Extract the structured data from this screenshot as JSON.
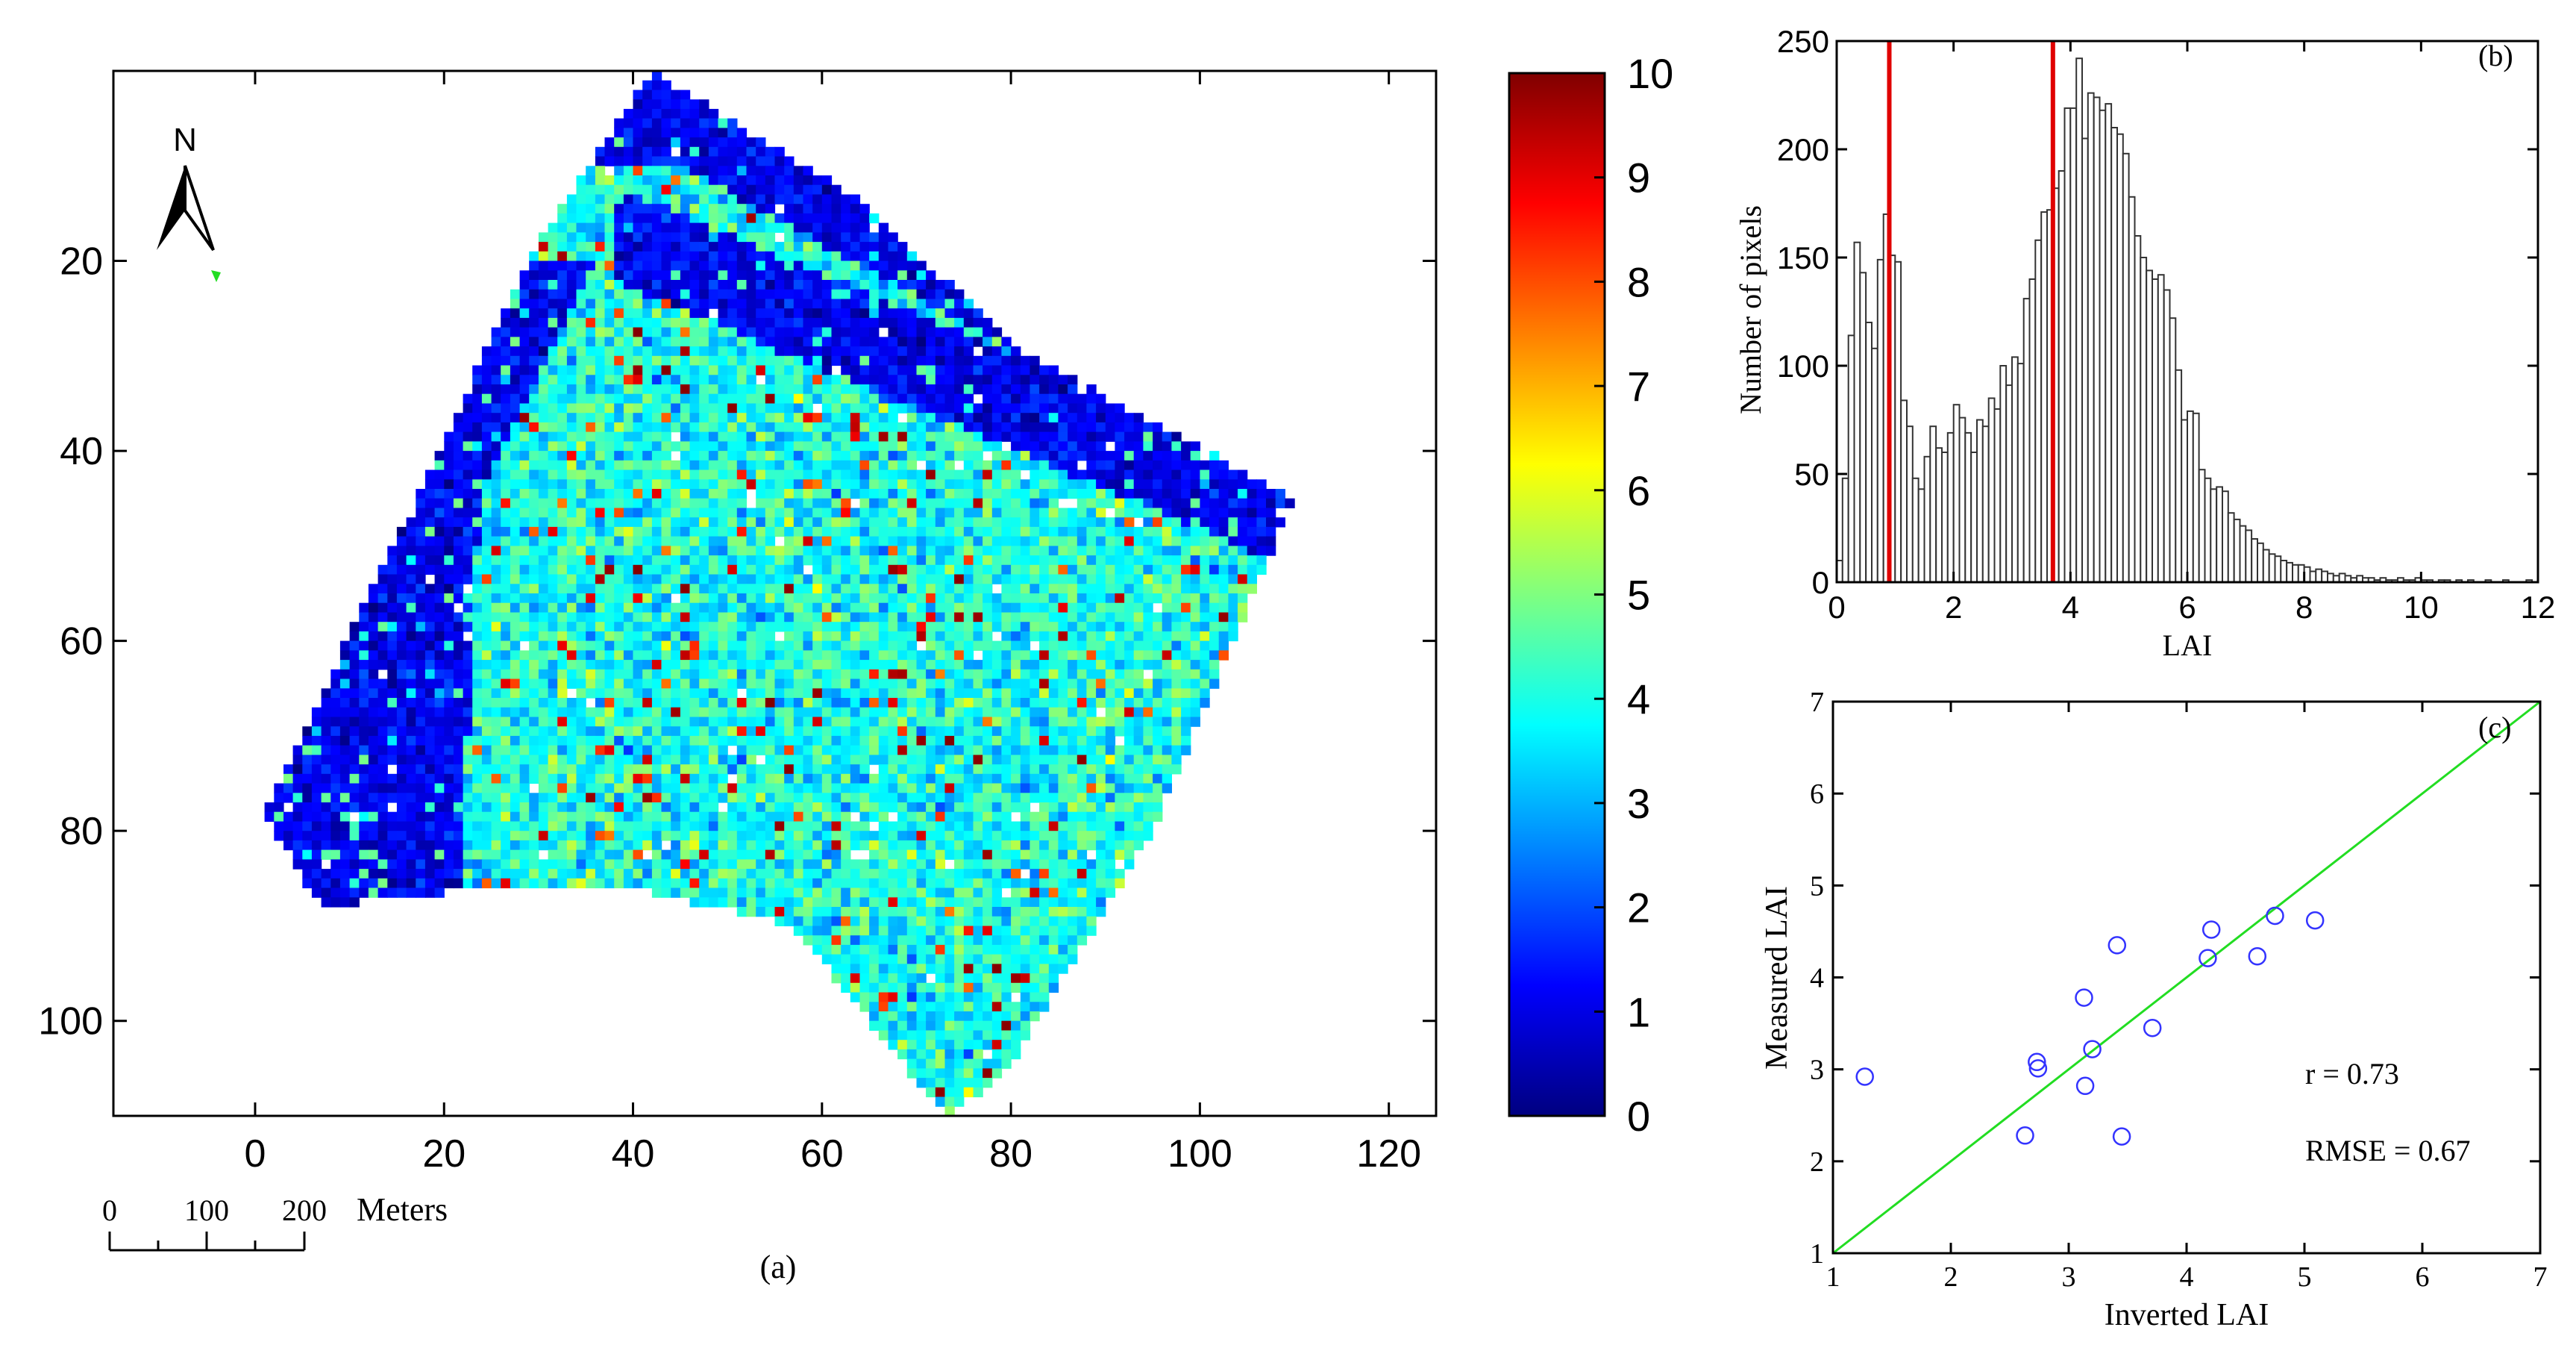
{
  "colors": {
    "axis": "#000000",
    "red_line": "#e00000",
    "fit_line": "#22dd22",
    "marker": "#3333ff",
    "background": "#ffffff"
  },
  "panel_a": {
    "caption": "(a)",
    "north_label": "N",
    "scale_bar": {
      "ticks": [
        "0",
        "100",
        "200"
      ],
      "unit": "Meters"
    },
    "colorbar_ticks": [
      "0",
      "1",
      "2",
      "3",
      "4",
      "5",
      "6",
      "7",
      "8",
      "9",
      "10"
    ]
  },
  "panel_b": {
    "tag": "(b)",
    "ylabel": "Number of pixels",
    "xlabel": "LAI"
  },
  "panel_c": {
    "tag": "(c)",
    "ylabel": "Measured LAI",
    "xlabel": "Inverted LAI",
    "r_text": "r = 0.73",
    "rmse_text": "RMSE = 0.67"
  },
  "chart_data": [
    {
      "type": "heatmap",
      "panel": "a",
      "xlim": [
        -15,
        125
      ],
      "ylim": [
        110,
        0
      ],
      "x_ticks": [
        0,
        20,
        40,
        60,
        80,
        100,
        120
      ],
      "y_ticks": [
        20,
        40,
        60,
        80,
        100
      ],
      "colorbar": {
        "min": 0,
        "max": 10,
        "colormap": "jet"
      },
      "footprint_vertices": [
        [
          42,
          0
        ],
        [
          30,
          18
        ],
        [
          17,
          45
        ],
        [
          1,
          78
        ],
        [
          7,
          88
        ],
        [
          25,
          86
        ],
        [
          40,
          86
        ],
        [
          57,
          90
        ],
        [
          73,
          110
        ],
        [
          79,
          106
        ],
        [
          95,
          80
        ],
        [
          110,
          45
        ],
        [
          82,
          30
        ],
        [
          63,
          13
        ],
        [
          42,
          0
        ]
      ]
    },
    {
      "type": "bar",
      "panel": "b",
      "xlim": [
        0,
        12
      ],
      "ylim": [
        0,
        250
      ],
      "x_ticks": [
        0,
        2,
        4,
        6,
        8,
        10,
        12
      ],
      "y_ticks": [
        0,
        50,
        100,
        150,
        200,
        250
      ],
      "bin_width": 0.1,
      "values": [
        10,
        48,
        114,
        157,
        143,
        120,
        108,
        149,
        170,
        151,
        148,
        84,
        72,
        48,
        43,
        58,
        72,
        62,
        60,
        69,
        82,
        76,
        69,
        60,
        75,
        72,
        85,
        80,
        100,
        91,
        104,
        101,
        131,
        140,
        158,
        171,
        172,
        182,
        190,
        219,
        219,
        242,
        205,
        226,
        224,
        218,
        221,
        210,
        207,
        198,
        178,
        160,
        150,
        144,
        140,
        142,
        135,
        122,
        98,
        75,
        79,
        78,
        52,
        48,
        43,
        44,
        42,
        32,
        29,
        26,
        24,
        20,
        18,
        15,
        13,
        12,
        10,
        9,
        8,
        8,
        7,
        5,
        6,
        5,
        4,
        3,
        4,
        3,
        2,
        3,
        2,
        2,
        1,
        2,
        1,
        1,
        2,
        1,
        1,
        2,
        1,
        1,
        0,
        1,
        1,
        0,
        1,
        0,
        1,
        0,
        0,
        1,
        0,
        0,
        1,
        0,
        0,
        0,
        1,
        0
      ],
      "vertical_lines": [
        0.9,
        3.7
      ]
    },
    {
      "type": "scatter",
      "panel": "c",
      "xlim": [
        1,
        7
      ],
      "ylim": [
        1,
        7
      ],
      "x_ticks": [
        1,
        2,
        3,
        4,
        5,
        6,
        7
      ],
      "y_ticks": [
        1,
        2,
        3,
        4,
        5,
        6,
        7
      ],
      "points": [
        [
          1.27,
          2.92
        ],
        [
          2.63,
          2.28
        ],
        [
          2.73,
          3.08
        ],
        [
          2.74,
          3.01
        ],
        [
          3.13,
          3.78
        ],
        [
          3.14,
          2.82
        ],
        [
          3.2,
          3.22
        ],
        [
          3.41,
          4.35
        ],
        [
          3.45,
          2.27
        ],
        [
          3.71,
          3.45
        ],
        [
          4.18,
          4.21
        ],
        [
          4.21,
          4.52
        ],
        [
          4.6,
          4.23
        ],
        [
          4.75,
          4.67
        ],
        [
          5.09,
          4.62
        ]
      ],
      "fit_line": [
        [
          1,
          1
        ],
        [
          7,
          7
        ]
      ]
    }
  ]
}
